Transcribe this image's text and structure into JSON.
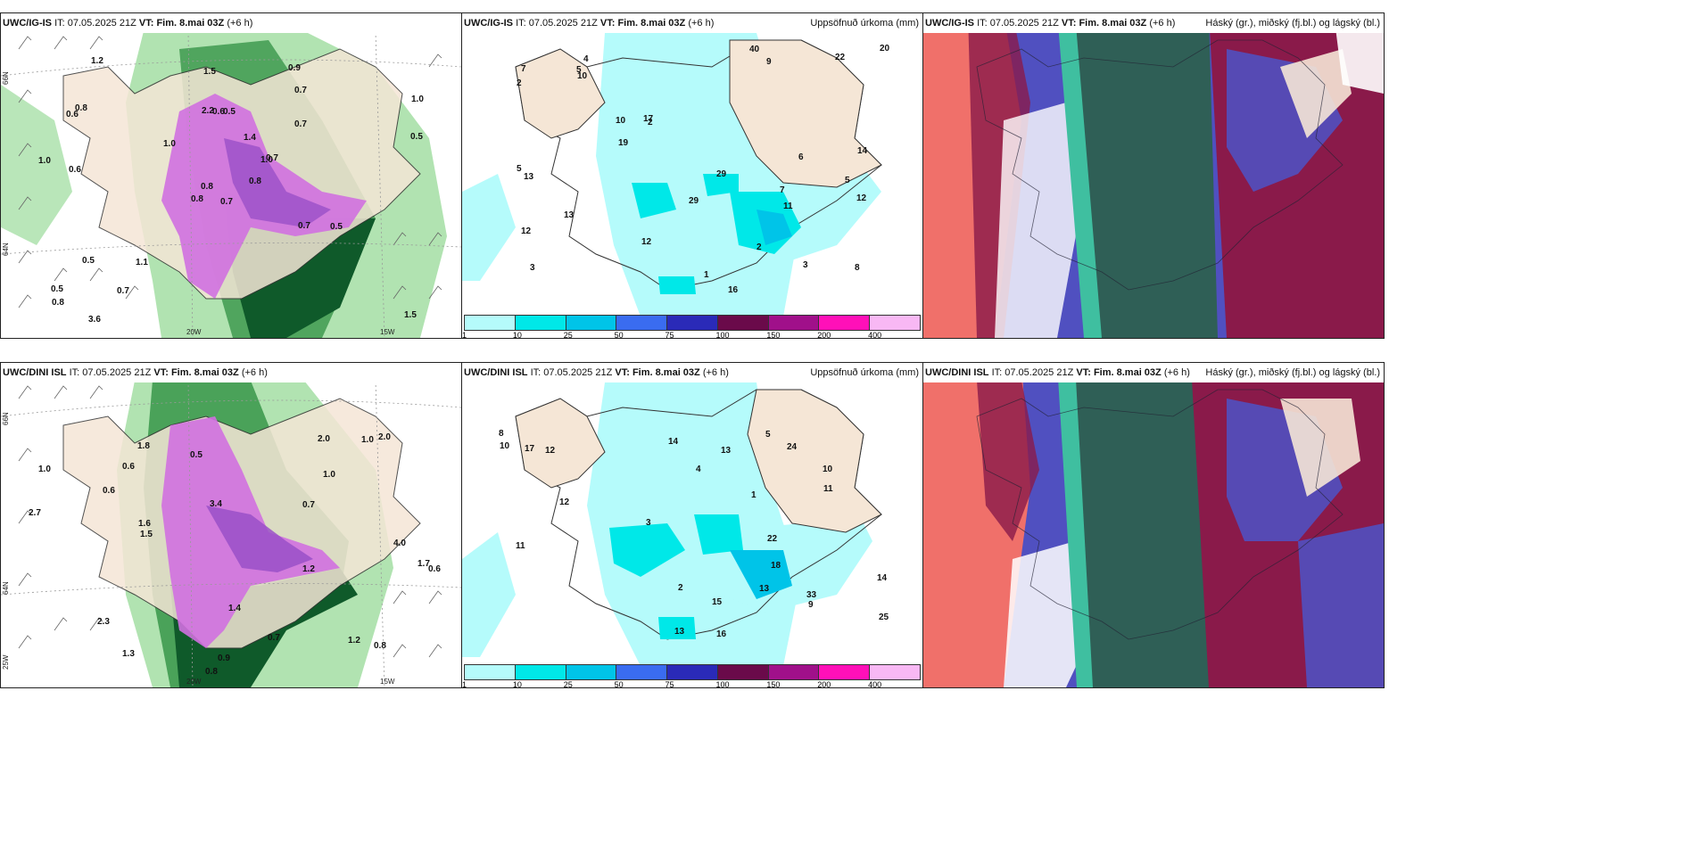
{
  "panels": [
    {
      "id": "top-left",
      "model": "UWC/IG-IS",
      "it_label": "IT:",
      "it": "07.05.2025 21Z",
      "vt_label": "VT:",
      "vt": "Fim. 8.mai 03Z",
      "lead": "(+6 h)",
      "right_title": ""
    },
    {
      "id": "top-middle",
      "model": "UWC/IG-IS",
      "it_label": "IT:",
      "it": "07.05.2025 21Z",
      "vt_label": "VT:",
      "vt": "Fim. 8.mai 03Z",
      "lead": "(+6 h)",
      "right_title": "Uppsöfnuð úrkoma (mm)"
    },
    {
      "id": "top-right",
      "model": "UWC/IG-IS",
      "it_label": "IT:",
      "it": "07.05.2025 21Z",
      "vt_label": "VT:",
      "vt": "Fim. 8.mai 03Z",
      "lead": "(+6 h)",
      "right_title": "Háský (gr.), miðský (fj.bl.) og lágský (bl.)"
    },
    {
      "id": "bottom-left",
      "model": "UWC/DINI ISL",
      "it_label": "IT:",
      "it": "07.05.2025 21Z",
      "vt_label": "VT:",
      "vt": "Fim. 8.mai 03Z",
      "lead": "(+6 h)",
      "right_title": ""
    },
    {
      "id": "bottom-middle",
      "model": "UWC/DINI ISL",
      "it_label": "IT:",
      "it": "07.05.2025 21Z",
      "vt_label": "VT:",
      "vt": "Fim. 8.mai 03Z",
      "lead": "(+6 h)",
      "right_title": "Uppsöfnuð úrkoma (mm)"
    },
    {
      "id": "bottom-right",
      "model": "UWC/DINI ISL",
      "it_label": "IT:",
      "it": "07.05.2025 21Z",
      "vt_label": "VT:",
      "vt": "Fim. 8.mai 03Z",
      "lead": "(+6 h)",
      "right_title": "Háský (gr.), miðský (fj.bl.) og lágský (bl.)"
    }
  ],
  "axes": {
    "lat66": "66N",
    "lat64": "64N",
    "lon20": "20W",
    "lon15": "15W",
    "lon25": "25W"
  },
  "precip_legend": {
    "ticks": [
      "1",
      "10",
      "25",
      "50",
      "75",
      "100",
      "150",
      "200",
      "400"
    ],
    "colors": [
      "#b5fbfb",
      "#00e8e8",
      "#00c4e8",
      "#3a6cf0",
      "#2a2ab8",
      "#6a0a4a",
      "#a0108a",
      "#ff10b8",
      "#f8b8f4"
    ]
  },
  "colors": {
    "land": "#f5e6d6",
    "sea": "#ffffff",
    "precip_light": "#b5fbfb",
    "green_dark": "#0f5a2a",
    "green_mid": "#3f9a50",
    "green_light": "#a8e0a8",
    "purple": "#d070e0",
    "cloud_teal": "#2f5f56",
    "cloud_red": "#8a1a4a",
    "cloud_blue": "#5050c0",
    "cloud_salmon": "#f0706a"
  },
  "top_left_labels": [
    "0.7",
    "0.6",
    "0.8",
    "0.5",
    "1.0",
    "1.1",
    "0.9",
    "0.5",
    "0.7",
    "0.8",
    "1.2",
    "1.5",
    "0.6",
    "1.0",
    "0.8",
    "0.7",
    "3.6",
    "2.2",
    "1.4",
    "0.5",
    "1.0",
    "0.8",
    "0.7",
    "0.6",
    "0.7",
    "0.5",
    "0.8",
    "1.5",
    "1.0",
    "0.7",
    "0.5"
  ],
  "top_mid_labels": [
    "7",
    "5",
    "3",
    "4",
    "2",
    "3",
    "12",
    "9",
    "10",
    "16",
    "2",
    "5",
    "7",
    "8",
    "12",
    "14",
    "29",
    "29",
    "17",
    "13",
    "20",
    "22",
    "19",
    "12",
    "40",
    "5",
    "11",
    "13",
    "10",
    "6",
    "1",
    "2"
  ],
  "bottom_left_labels": [
    "1.0",
    "0.6",
    "0.7",
    "0.9",
    "1.0",
    "0.8",
    "1.2",
    "1.5",
    "2.0",
    "0.6",
    "1.7",
    "1.8",
    "1.0",
    "2.3",
    "2.7",
    "1.3",
    "1.6",
    "0.5",
    "0.8",
    "0.7",
    "1.2",
    "4.0",
    "3.4",
    "1.4",
    "2.0",
    "0.6"
  ],
  "bottom_mid_labels": [
    "4",
    "9",
    "8",
    "10",
    "13",
    "14",
    "16",
    "5",
    "12",
    "11",
    "33",
    "13",
    "22",
    "17",
    "25",
    "24",
    "14",
    "13",
    "15",
    "18",
    "10",
    "2",
    "1",
    "3",
    "11",
    "12"
  ]
}
